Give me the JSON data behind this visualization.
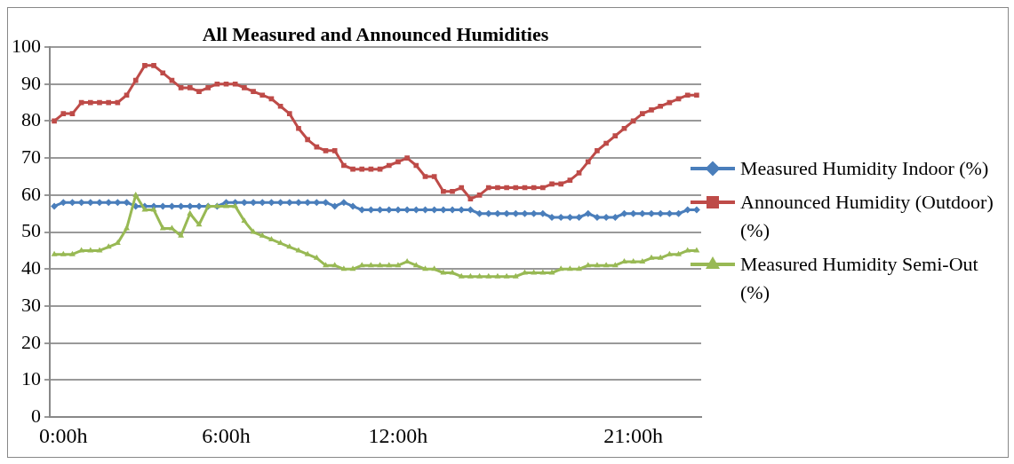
{
  "chart_data": {
    "type": "line",
    "title": "All Measured and Announced Humidities",
    "categories": [
      null,
      "0:00h",
      null,
      null,
      null,
      null,
      null,
      null,
      null,
      null,
      null,
      null,
      null,
      null,
      null,
      null,
      null,
      null,
      null,
      "6:00h",
      null,
      null,
      null,
      null,
      null,
      null,
      null,
      null,
      null,
      null,
      null,
      null,
      null,
      null,
      null,
      null,
      null,
      null,
      "12:00h",
      null,
      null,
      null,
      null,
      null,
      null,
      null,
      null,
      null,
      null,
      null,
      null,
      null,
      null,
      null,
      null,
      null,
      null,
      null,
      null,
      null,
      null,
      null,
      null,
      null,
      "21:00h",
      null,
      null,
      null,
      null,
      null,
      null,
      null
    ],
    "series": [
      {
        "name": "Measured Humidity Indoor (%)",
        "color": "#4a7ebb",
        "marker": "diamond",
        "values": [
          57,
          58,
          58,
          58,
          58,
          58,
          58,
          58,
          58,
          57,
          57,
          57,
          57,
          57,
          57,
          57,
          57,
          57,
          57,
          58,
          58,
          58,
          58,
          58,
          58,
          58,
          58,
          58,
          58,
          58,
          58,
          57,
          58,
          57,
          56,
          56,
          56,
          56,
          56,
          56,
          56,
          56,
          56,
          56,
          56,
          56,
          56,
          55,
          55,
          55,
          55,
          55,
          55,
          55,
          55,
          54,
          54,
          54,
          54,
          55,
          54,
          54,
          54,
          55,
          55,
          55,
          55,
          55,
          55,
          55,
          56,
          56
        ]
      },
      {
        "name": "Announced Humidity (Outdoor) (%)",
        "color": "#be4b48",
        "marker": "square",
        "values": [
          80,
          82,
          82,
          85,
          85,
          85,
          85,
          85,
          87,
          91,
          95,
          95,
          93,
          91,
          89,
          89,
          88,
          89,
          90,
          90,
          90,
          89,
          88,
          87,
          86,
          84,
          82,
          78,
          75,
          73,
          72,
          72,
          68,
          67,
          67,
          67,
          67,
          68,
          69,
          70,
          68,
          65,
          65,
          61,
          61,
          62,
          59,
          60,
          62,
          62,
          62,
          62,
          62,
          62,
          62,
          63,
          63,
          64,
          66,
          69,
          72,
          74,
          76,
          78,
          80,
          82,
          83,
          84,
          85,
          86,
          87,
          87
        ]
      },
      {
        "name": "Measured Humidity Semi-Out (%)",
        "color": "#98b954",
        "marker": "triangle",
        "values": [
          44,
          44,
          44,
          45,
          45,
          45,
          46,
          47,
          51,
          60,
          56,
          56,
          51,
          51,
          49,
          55,
          52,
          57,
          57,
          57,
          57,
          53,
          50,
          49,
          48,
          47,
          46,
          45,
          44,
          43,
          41,
          41,
          40,
          40,
          41,
          41,
          41,
          41,
          41,
          42,
          41,
          40,
          40,
          39,
          39,
          38,
          38,
          38,
          38,
          38,
          38,
          38,
          39,
          39,
          39,
          39,
          40,
          40,
          40,
          41,
          41,
          41,
          41,
          42,
          42,
          42,
          43,
          43,
          44,
          44,
          45,
          45
        ]
      }
    ],
    "ylim": [
      0,
      100
    ],
    "yticks": [
      0,
      10,
      20,
      30,
      40,
      50,
      60,
      70,
      80,
      90,
      100
    ],
    "grid": "y",
    "legend": "right",
    "line_style": "solid"
  }
}
